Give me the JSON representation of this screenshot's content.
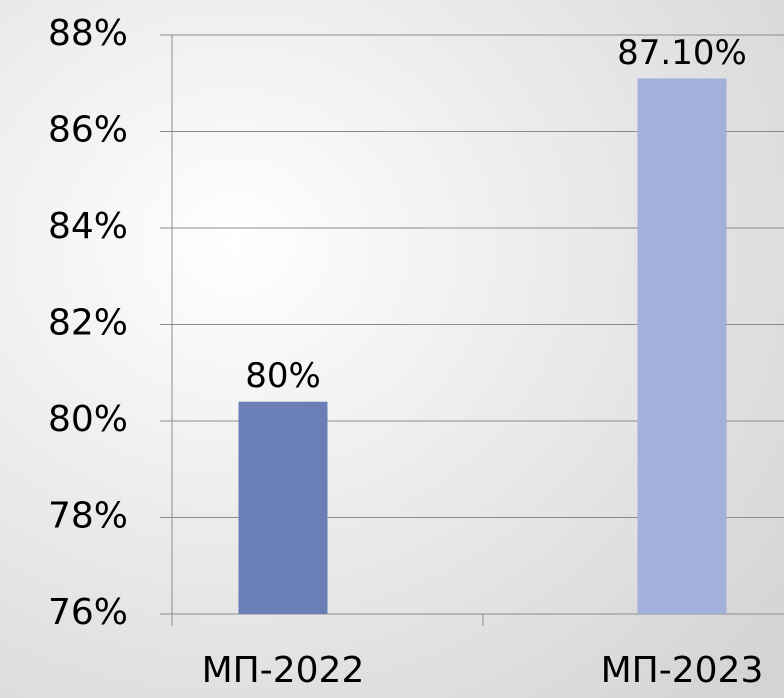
{
  "chart_data": {
    "type": "bar",
    "categories": [
      "МП-2022",
      "МП-2023"
    ],
    "series": [
      {
        "colors": [
          "#6a7fb6",
          "#a3b0da"
        ],
        "values": [
          80.4,
          87.1
        ],
        "value_labels": [
          "80%",
          "87.10%"
        ]
      }
    ],
    "ylim": [
      76,
      88
    ],
    "yticks": [
      {
        "value": 76,
        "label": "76%"
      },
      {
        "value": 78,
        "label": "78%"
      },
      {
        "value": 80,
        "label": "80%"
      },
      {
        "value": 82,
        "label": "82%"
      },
      {
        "value": 84,
        "label": "84%"
      },
      {
        "value": 86,
        "label": "86%"
      },
      {
        "value": 88,
        "label": "88%"
      }
    ],
    "grid": true
  }
}
